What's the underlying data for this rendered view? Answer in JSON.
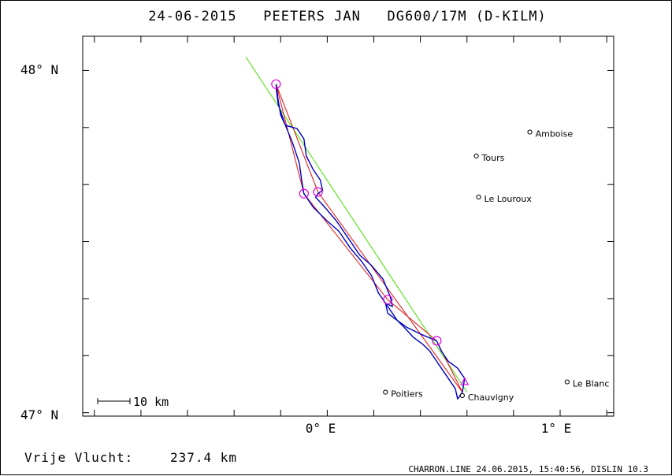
{
  "header": {
    "title": "24-06-2015   PEETERS JAN   DG600/17M (D-KILM)"
  },
  "axes": {
    "y_labels": [
      {
        "text": "48° N",
        "lat": 48.0
      },
      {
        "text": "47° N",
        "lat": 47.0
      }
    ],
    "x_labels": [
      {
        "text": "0° E",
        "lon": 0.0
      },
      {
        "text": "1° E",
        "lon": 1.0
      }
    ],
    "lon_range": [
      -1.05,
      1.23
    ],
    "lat_range": [
      46.99,
      48.1
    ]
  },
  "cities": [
    {
      "name": "Amboise",
      "lon": 0.87,
      "lat": 47.82
    },
    {
      "name": "Tours",
      "lon": 0.64,
      "lat": 47.75
    },
    {
      "name": "Le Louroux",
      "lon": 0.65,
      "lat": 47.63
    },
    {
      "name": "Poitiers",
      "lon": 0.25,
      "lat": 47.06
    },
    {
      "name": "Chauvigny",
      "lon": 0.58,
      "lat": 47.05
    },
    {
      "name": "Le Blanc",
      "lon": 1.03,
      "lat": 47.09
    }
  ],
  "scale_bar": {
    "label": "10 km"
  },
  "turnpoints": [
    {
      "lon": -0.22,
      "lat": 47.96
    },
    {
      "lon": -0.1,
      "lat": 47.64
    },
    {
      "lon": -0.04,
      "lat": 47.645
    },
    {
      "lon": 0.26,
      "lat": 47.33
    },
    {
      "lon": 0.47,
      "lat": 47.21
    }
  ],
  "task_line": [
    {
      "lon": -0.22,
      "lat": 47.96
    },
    {
      "lon": -0.1,
      "lat": 47.64
    },
    {
      "lon": 0.26,
      "lat": 47.33
    },
    {
      "lon": 0.47,
      "lat": 47.21
    },
    {
      "lon": 0.58,
      "lat": 47.06
    },
    {
      "lon": -0.04,
      "lat": 47.645
    },
    {
      "lon": -0.22,
      "lat": 47.96
    }
  ],
  "reference_line": [
    {
      "lon": -0.35,
      "lat": 48.04
    },
    {
      "lon": 0.6,
      "lat": 47.06
    }
  ],
  "start_marker": {
    "lon": 0.59,
    "lat": 47.09
  },
  "flight_track": [
    {
      "lon": -0.22,
      "lat": 47.96
    },
    {
      "lon": -0.21,
      "lat": 47.91
    },
    {
      "lon": -0.2,
      "lat": 47.87
    },
    {
      "lon": -0.18,
      "lat": 47.84
    },
    {
      "lon": -0.13,
      "lat": 47.83
    },
    {
      "lon": -0.1,
      "lat": 47.8
    },
    {
      "lon": -0.09,
      "lat": 47.75
    },
    {
      "lon": -0.06,
      "lat": 47.71
    },
    {
      "lon": -0.03,
      "lat": 47.68
    },
    {
      "lon": -0.02,
      "lat": 47.65
    },
    {
      "lon": -0.04,
      "lat": 47.64
    },
    {
      "lon": -0.05,
      "lat": 47.63
    },
    {
      "lon": -0.01,
      "lat": 47.6
    },
    {
      "lon": 0.04,
      "lat": 47.56
    },
    {
      "lon": 0.09,
      "lat": 47.51
    },
    {
      "lon": 0.14,
      "lat": 47.46
    },
    {
      "lon": 0.19,
      "lat": 47.43
    },
    {
      "lon": 0.24,
      "lat": 47.39
    },
    {
      "lon": 0.27,
      "lat": 47.34
    },
    {
      "lon": 0.28,
      "lat": 47.31
    },
    {
      "lon": 0.25,
      "lat": 47.32
    },
    {
      "lon": 0.26,
      "lat": 47.29
    },
    {
      "lon": 0.3,
      "lat": 47.27
    },
    {
      "lon": 0.34,
      "lat": 47.25
    },
    {
      "lon": 0.4,
      "lat": 47.23
    },
    {
      "lon": 0.47,
      "lat": 47.21
    },
    {
      "lon": 0.49,
      "lat": 47.18
    },
    {
      "lon": 0.52,
      "lat": 47.15
    },
    {
      "lon": 0.56,
      "lat": 47.13
    },
    {
      "lon": 0.59,
      "lat": 47.1
    },
    {
      "lon": 0.58,
      "lat": 47.06
    },
    {
      "lon": 0.56,
      "lat": 47.04
    },
    {
      "lon": 0.55,
      "lat": 47.07
    },
    {
      "lon": 0.52,
      "lat": 47.1
    },
    {
      "lon": 0.49,
      "lat": 47.13
    },
    {
      "lon": 0.47,
      "lat": 47.15
    },
    {
      "lon": 0.44,
      "lat": 47.18
    },
    {
      "lon": 0.41,
      "lat": 47.2
    },
    {
      "lon": 0.37,
      "lat": 47.22
    },
    {
      "lon": 0.33,
      "lat": 47.25
    },
    {
      "lon": 0.3,
      "lat": 47.27
    },
    {
      "lon": 0.26,
      "lat": 47.31
    },
    {
      "lon": 0.22,
      "lat": 47.35
    },
    {
      "lon": 0.19,
      "lat": 47.4
    },
    {
      "lon": 0.15,
      "lat": 47.44
    },
    {
      "lon": 0.1,
      "lat": 47.48
    },
    {
      "lon": 0.05,
      "lat": 47.53
    },
    {
      "lon": 0.0,
      "lat": 47.56
    },
    {
      "lon": -0.06,
      "lat": 47.6
    },
    {
      "lon": -0.1,
      "lat": 47.64
    },
    {
      "lon": -0.11,
      "lat": 47.68
    },
    {
      "lon": -0.12,
      "lat": 47.73
    },
    {
      "lon": -0.15,
      "lat": 47.79
    },
    {
      "lon": -0.18,
      "lat": 47.84
    },
    {
      "lon": -0.21,
      "lat": 47.9
    },
    {
      "lon": -0.22,
      "lat": 47.95
    }
  ],
  "colors": {
    "track": "#0000c0",
    "task": "#e01010",
    "reference": "#40e000",
    "turnpoint": "#e000e0",
    "axes": "#000000"
  },
  "summary": {
    "distance_label": "Vrije Vlucht:",
    "distance_value": "237.4 km"
  },
  "footer": {
    "text": "CHARRON.LINE 24.06.2015, 15:40:56, DISLIN 10.3"
  }
}
